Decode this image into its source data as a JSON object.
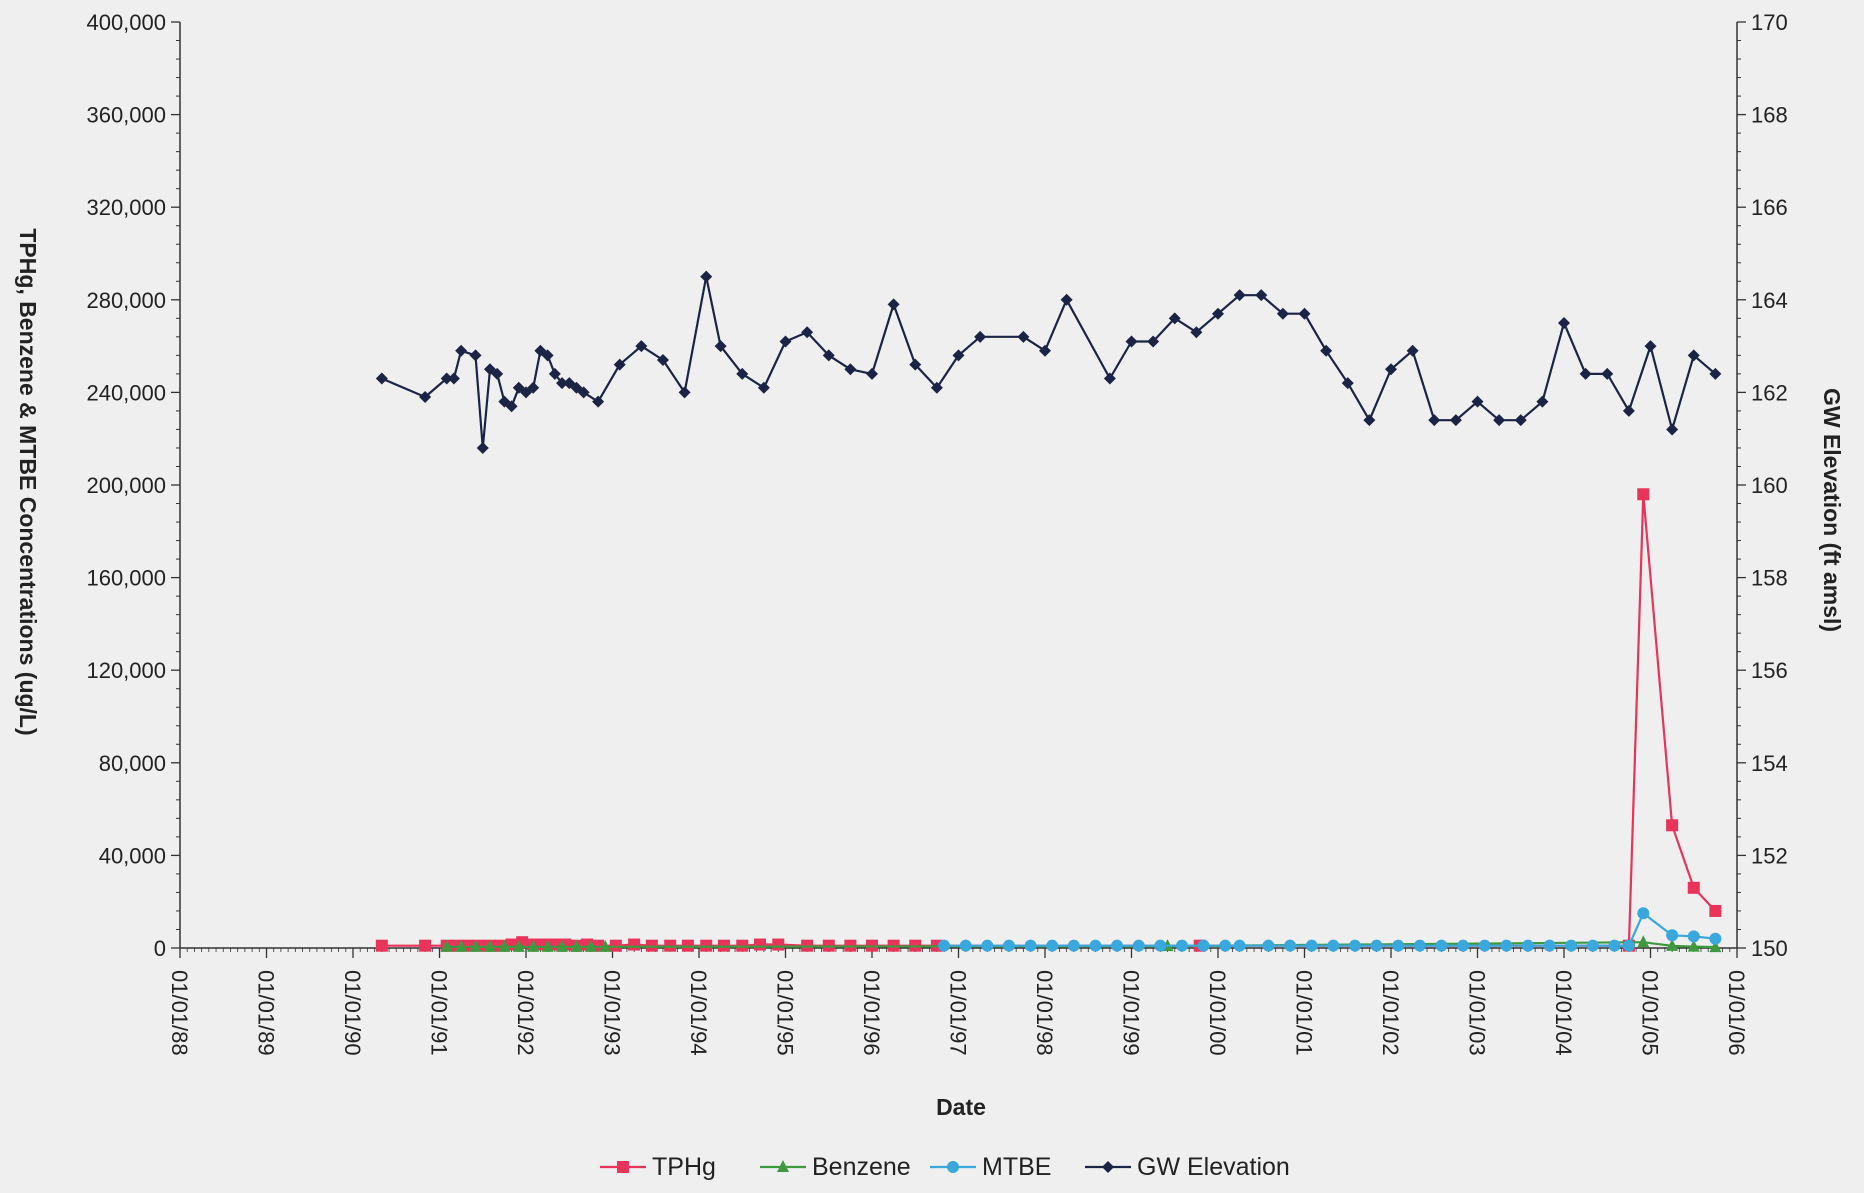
{
  "chart_data": {
    "type": "line",
    "xlabel": "Date",
    "ylabel_left": "TPHg, Benzene & MTBE Concentrations (ug/L)",
    "ylabel_right": "GW Elevation (ft amsl)",
    "x_ticks": [
      "01/01/88",
      "01/01/89",
      "01/01/90",
      "01/01/91",
      "01/01/92",
      "01/01/93",
      "01/01/94",
      "01/01/95",
      "01/01/96",
      "01/01/97",
      "01/01/98",
      "01/01/99",
      "01/01/00",
      "01/01/01",
      "01/01/02",
      "01/01/03",
      "01/01/04",
      "01/01/05",
      "01/01/06"
    ],
    "y_left_ticks": [
      "0",
      "40,000",
      "80,000",
      "120,000",
      "160,000",
      "200,000",
      "240,000",
      "280,000",
      "320,000",
      "360,000",
      "400,000"
    ],
    "y_left_range": [
      0,
      400000
    ],
    "y_right_ticks": [
      "150",
      "152",
      "154",
      "156",
      "158",
      "160",
      "162",
      "164",
      "166",
      "168",
      "170"
    ],
    "y_right_range": [
      150,
      170
    ],
    "x_range": [
      "01/01/88",
      "01/01/06"
    ],
    "legend_position": "bottom",
    "grid": false,
    "series": [
      {
        "name": "TPHg",
        "axis": "left",
        "color": "#e8335a",
        "marker": "square",
        "points": [
          [
            "05/01/90",
            1000
          ],
          [
            "11/01/90",
            1000
          ],
          [
            "02/01/91",
            1000
          ],
          [
            "03/15/91",
            1000
          ],
          [
            "05/01/91",
            1000
          ],
          [
            "06/15/91",
            1000
          ],
          [
            "08/01/91",
            1000
          ],
          [
            "09/15/91",
            1000
          ],
          [
            "11/01/91",
            1500
          ],
          [
            "12/15/91",
            2500
          ],
          [
            "02/01/92",
            1500
          ],
          [
            "03/15/92",
            1500
          ],
          [
            "05/01/92",
            1500
          ],
          [
            "06/15/92",
            1500
          ],
          [
            "08/01/92",
            1000
          ],
          [
            "09/15/92",
            1500
          ],
          [
            "11/01/92",
            1000
          ],
          [
            "01/15/93",
            1000
          ],
          [
            "04/01/93",
            1500
          ],
          [
            "06/15/93",
            1000
          ],
          [
            "09/01/93",
            1000
          ],
          [
            "11/15/93",
            1000
          ],
          [
            "02/01/94",
            1000
          ],
          [
            "04/15/94",
            1000
          ],
          [
            "07/01/94",
            1000
          ],
          [
            "09/15/94",
            1500
          ],
          [
            "12/01/94",
            1500
          ],
          [
            "04/01/95",
            1000
          ],
          [
            "07/01/95",
            1000
          ],
          [
            "10/01/95",
            1000
          ],
          [
            "01/01/96",
            1000
          ],
          [
            "04/01/96",
            1000
          ],
          [
            "07/01/96",
            1000
          ],
          [
            "10/01/96",
            1000
          ],
          [
            "10/15/99",
            1000
          ],
          [
            "10/01/04",
            1000
          ],
          [
            "12/01/04",
            196000
          ],
          [
            "04/01/05",
            53000
          ],
          [
            "07/01/05",
            26000
          ],
          [
            "10/01/05",
            16000
          ]
        ]
      },
      {
        "name": "Benzene",
        "axis": "left",
        "color": "#3f9a3f",
        "marker": "triangle",
        "points": [
          [
            "02/01/91",
            500
          ],
          [
            "04/01/91",
            500
          ],
          [
            "06/01/91",
            500
          ],
          [
            "08/01/91",
            500
          ],
          [
            "10/01/91",
            500
          ],
          [
            "12/01/91",
            500
          ],
          [
            "02/01/92",
            500
          ],
          [
            "04/01/92",
            500
          ],
          [
            "06/01/92",
            500
          ],
          [
            "08/01/92",
            500
          ],
          [
            "10/01/92",
            500
          ],
          [
            "12/01/92",
            500
          ],
          [
            "06/01/99",
            800
          ],
          [
            "12/01/04",
            2500
          ],
          [
            "04/01/05",
            900
          ],
          [
            "07/01/05",
            600
          ],
          [
            "10/01/05",
            400
          ]
        ]
      },
      {
        "name": "MTBE",
        "axis": "left",
        "color": "#3aa8dc",
        "marker": "circle",
        "points": [
          [
            "11/01/96",
            1000
          ],
          [
            "02/01/97",
            1000
          ],
          [
            "05/01/97",
            1000
          ],
          [
            "08/01/97",
            1000
          ],
          [
            "11/01/97",
            1000
          ],
          [
            "02/01/98",
            1000
          ],
          [
            "05/01/98",
            1000
          ],
          [
            "08/01/98",
            1000
          ],
          [
            "11/01/98",
            1000
          ],
          [
            "02/01/99",
            1000
          ],
          [
            "05/01/99",
            1000
          ],
          [
            "08/01/99",
            1000
          ],
          [
            "11/01/99",
            1000
          ],
          [
            "02/01/00",
            1000
          ],
          [
            "04/01/00",
            1000
          ],
          [
            "08/01/00",
            1000
          ],
          [
            "11/01/00",
            1000
          ],
          [
            "02/01/01",
            1000
          ],
          [
            "05/01/01",
            1000
          ],
          [
            "08/01/01",
            1000
          ],
          [
            "11/01/01",
            1000
          ],
          [
            "02/01/02",
            1000
          ],
          [
            "05/01/02",
            1000
          ],
          [
            "08/01/02",
            1000
          ],
          [
            "11/01/02",
            1000
          ],
          [
            "02/01/03",
            1000
          ],
          [
            "05/01/03",
            1000
          ],
          [
            "08/01/03",
            1000
          ],
          [
            "11/01/03",
            1000
          ],
          [
            "02/01/04",
            1000
          ],
          [
            "05/01/04",
            1000
          ],
          [
            "08/01/04",
            1000
          ],
          [
            "10/01/04",
            1000
          ],
          [
            "12/01/04",
            15000
          ],
          [
            "04/01/05",
            5500
          ],
          [
            "07/01/05",
            5000
          ],
          [
            "10/01/05",
            4000
          ]
        ]
      },
      {
        "name": "GW Elevation",
        "axis": "right",
        "color": "#1c2446",
        "marker": "diamond",
        "points": [
          [
            "05/01/90",
            162.3
          ],
          [
            "11/01/90",
            161.9
          ],
          [
            "02/01/91",
            162.3
          ],
          [
            "03/01/91",
            162.3
          ],
          [
            "04/01/91",
            162.9
          ],
          [
            "06/01/91",
            162.8
          ],
          [
            "07/01/91",
            160.8
          ],
          [
            "08/01/91",
            162.5
          ],
          [
            "09/01/91",
            162.4
          ],
          [
            "10/01/91",
            161.8
          ],
          [
            "11/01/91",
            161.7
          ],
          [
            "12/01/91",
            162.1
          ],
          [
            "01/01/92",
            162.0
          ],
          [
            "02/01/92",
            162.1
          ],
          [
            "03/01/92",
            162.9
          ],
          [
            "04/01/92",
            162.8
          ],
          [
            "05/01/92",
            162.4
          ],
          [
            "06/01/92",
            162.2
          ],
          [
            "07/01/92",
            162.2
          ],
          [
            "08/01/92",
            162.1
          ],
          [
            "09/01/92",
            162.0
          ],
          [
            "11/01/92",
            161.8
          ],
          [
            "02/01/93",
            162.6
          ],
          [
            "05/01/93",
            163.0
          ],
          [
            "08/01/93",
            162.7
          ],
          [
            "11/01/93",
            162.0
          ],
          [
            "02/01/94",
            164.5
          ],
          [
            "04/01/94",
            163.0
          ],
          [
            "07/01/94",
            162.4
          ],
          [
            "10/01/94",
            162.1
          ],
          [
            "01/01/95",
            163.1
          ],
          [
            "04/01/95",
            163.3
          ],
          [
            "07/01/95",
            162.8
          ],
          [
            "10/01/95",
            162.5
          ],
          [
            "01/01/96",
            162.4
          ],
          [
            "04/01/96",
            163.9
          ],
          [
            "07/01/96",
            162.6
          ],
          [
            "10/01/96",
            162.1
          ],
          [
            "01/01/97",
            162.8
          ],
          [
            "04/01/97",
            163.2
          ],
          [
            "10/01/97",
            163.2
          ],
          [
            "01/01/98",
            162.9
          ],
          [
            "04/01/98",
            164.0
          ],
          [
            "10/01/98",
            162.3
          ],
          [
            "01/01/99",
            163.1
          ],
          [
            "04/01/99",
            163.1
          ],
          [
            "07/01/99",
            163.6
          ],
          [
            "10/01/99",
            163.3
          ],
          [
            "01/01/00",
            163.7
          ],
          [
            "04/01/00",
            164.1
          ],
          [
            "07/01/00",
            164.1
          ],
          [
            "10/01/00",
            163.7
          ],
          [
            "01/01/01",
            163.7
          ],
          [
            "04/01/01",
            162.9
          ],
          [
            "07/01/01",
            162.2
          ],
          [
            "10/01/01",
            161.4
          ],
          [
            "01/01/02",
            162.5
          ],
          [
            "04/01/02",
            162.9
          ],
          [
            "07/01/02",
            161.4
          ],
          [
            "10/01/02",
            161.4
          ],
          [
            "01/01/03",
            161.8
          ],
          [
            "04/01/03",
            161.4
          ],
          [
            "07/01/03",
            161.4
          ],
          [
            "10/01/03",
            161.8
          ],
          [
            "01/01/04",
            163.5
          ],
          [
            "04/01/04",
            162.4
          ],
          [
            "07/01/04",
            162.4
          ],
          [
            "10/01/04",
            161.6
          ],
          [
            "01/01/05",
            163.0
          ],
          [
            "04/01/05",
            161.2
          ],
          [
            "07/01/05",
            162.8
          ],
          [
            "10/01/05",
            162.4
          ]
        ]
      }
    ]
  }
}
